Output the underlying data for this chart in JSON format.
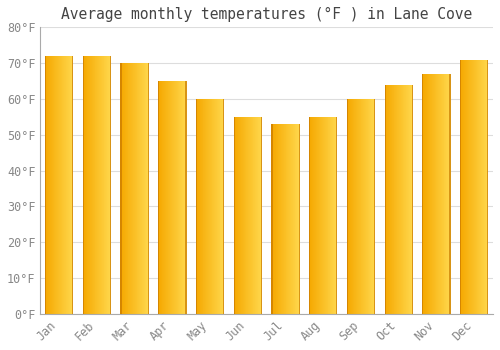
{
  "title": "Average monthly temperatures (°F ) in Lane Cove",
  "months": [
    "Jan",
    "Feb",
    "Mar",
    "Apr",
    "May",
    "Jun",
    "Jul",
    "Aug",
    "Sep",
    "Oct",
    "Nov",
    "Dec"
  ],
  "values": [
    72,
    72,
    70,
    65,
    60,
    55,
    53,
    55,
    60,
    64,
    67,
    71
  ],
  "bar_color_left": "#F5A800",
  "bar_color_right": "#FFD84D",
  "bar_edge_color": "#C87800",
  "ylim": [
    0,
    80
  ],
  "yticks": [
    0,
    10,
    20,
    30,
    40,
    50,
    60,
    70,
    80
  ],
  "ytick_labels": [
    "0°F",
    "10°F",
    "20°F",
    "30°F",
    "40°F",
    "50°F",
    "60°F",
    "70°F",
    "80°F"
  ],
  "background_color": "#ffffff",
  "grid_color": "#dddddd",
  "title_fontsize": 10.5,
  "tick_fontsize": 8.5,
  "font_family": "monospace"
}
